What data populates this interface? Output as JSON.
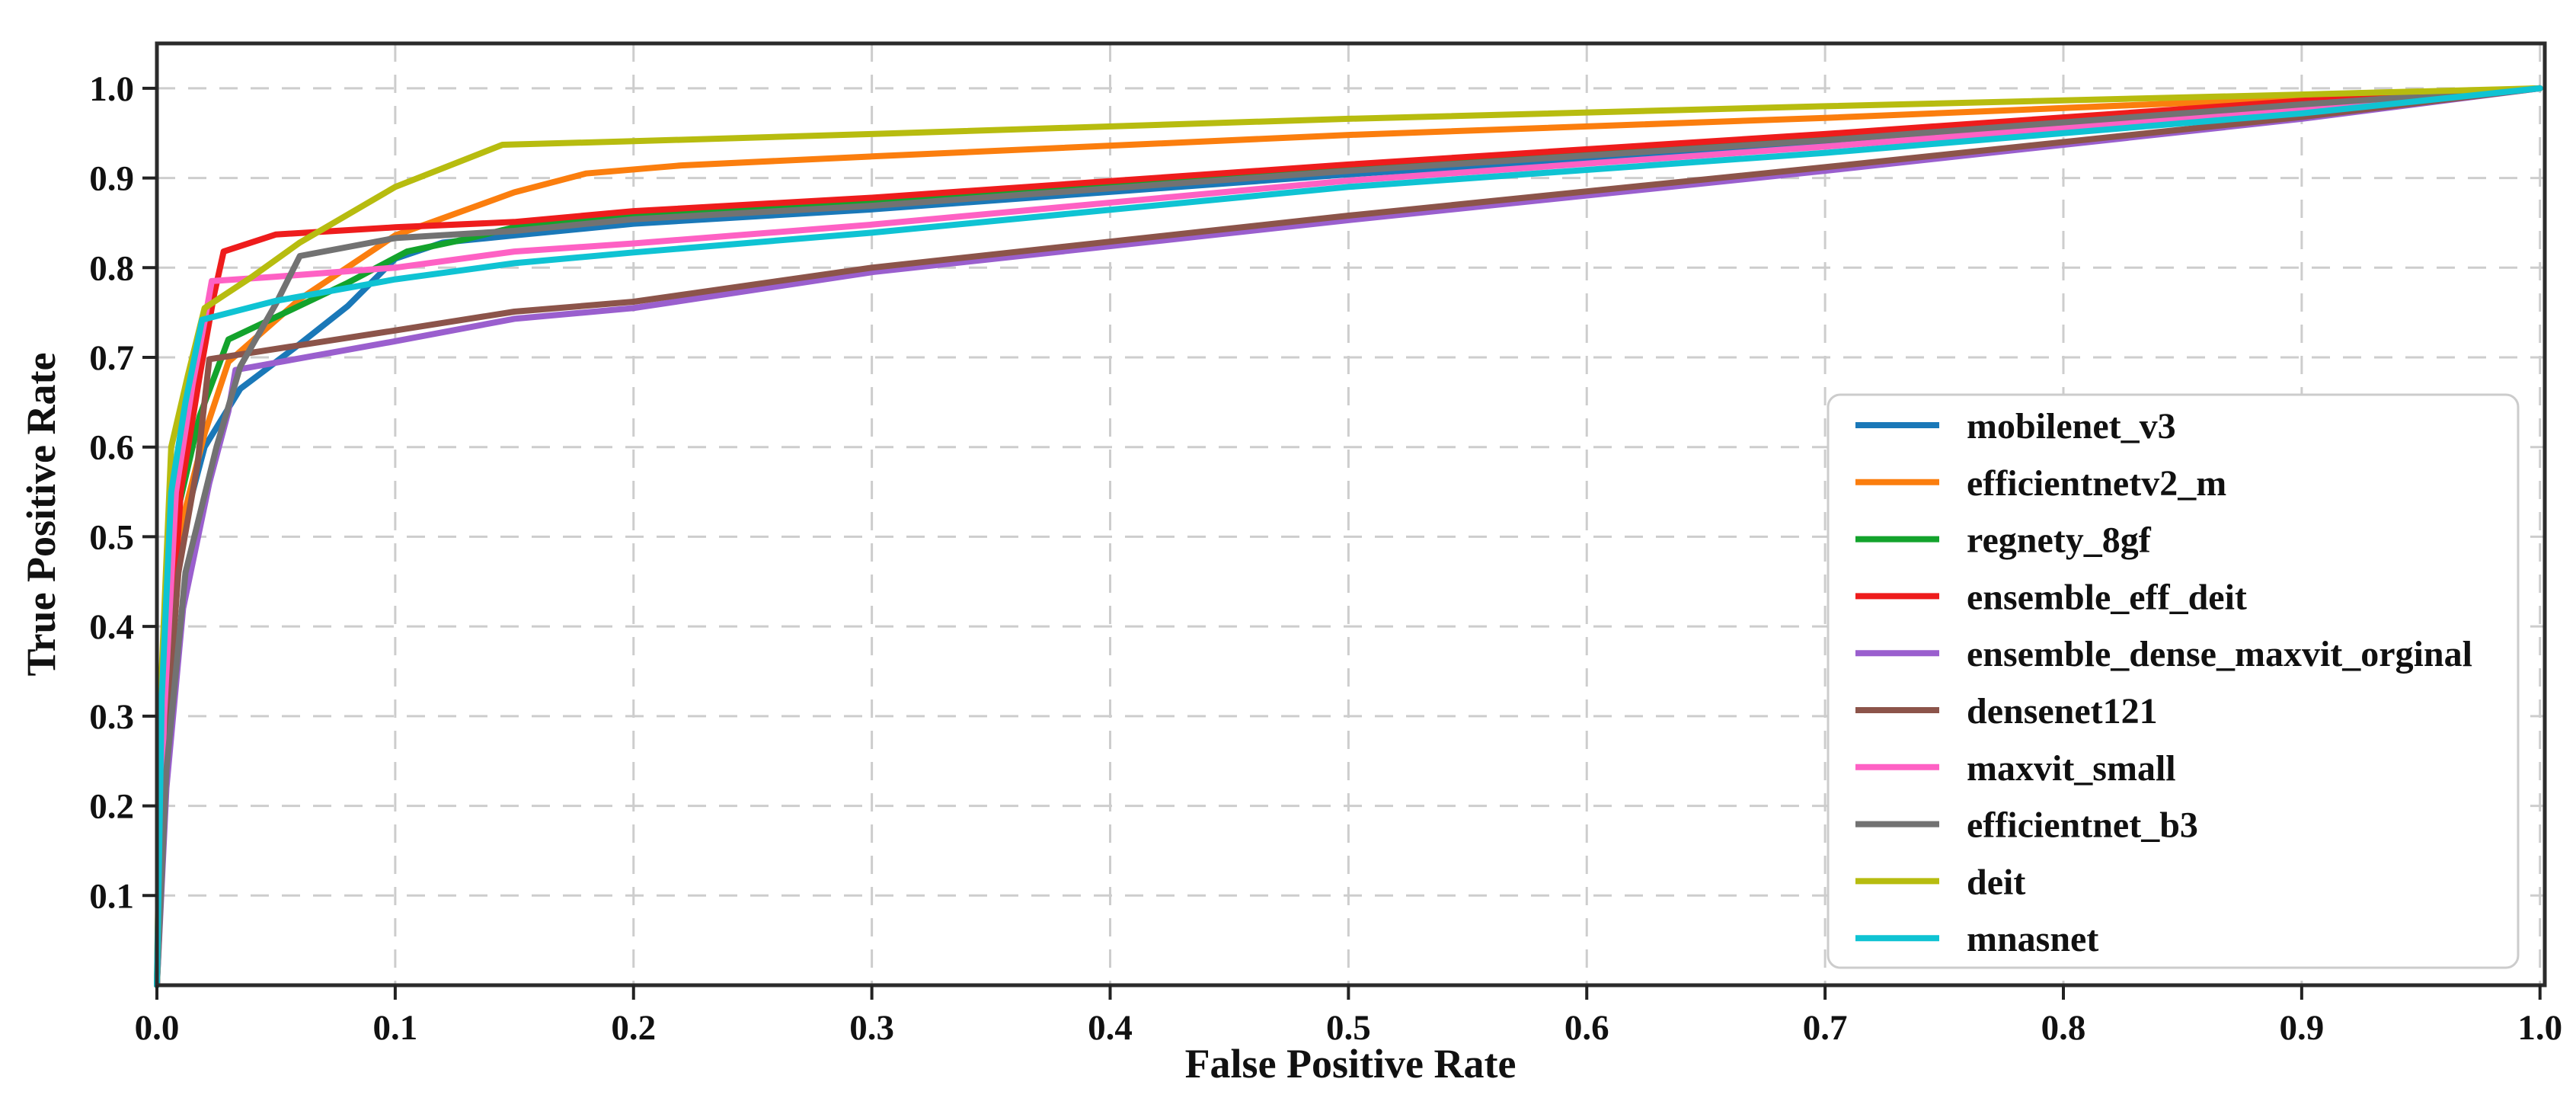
{
  "figure": {
    "xlabel": "False Positive Rate",
    "ylabel": "True Positive Rate"
  },
  "chart_data": {
    "type": "line",
    "title": "",
    "xlabel": "False Positive Rate",
    "ylabel": "True Positive Rate",
    "xlim": [
      0,
      1.0
    ],
    "ylim": [
      0,
      1.05
    ],
    "grid": true,
    "grid_style": "dashed",
    "legend_position": "lower right",
    "x_ticks": [
      "0.0",
      "0.1",
      "0.2",
      "0.3",
      "0.4",
      "0.5",
      "0.6",
      "0.7",
      "0.8",
      "0.9",
      "1.0"
    ],
    "y_ticks": [
      "0.1",
      "0.2",
      "0.3",
      "0.4",
      "0.5",
      "0.6",
      "0.7",
      "0.8",
      "0.9",
      "1.0"
    ],
    "series": [
      {
        "name": "mobilenet_v3",
        "color": "#1a78b8",
        "points": [
          [
            0,
            0
          ],
          [
            0.004,
            0.28
          ],
          [
            0.01,
            0.5
          ],
          [
            0.02,
            0.6
          ],
          [
            0.035,
            0.665
          ],
          [
            0.06,
            0.715
          ],
          [
            0.08,
            0.757
          ],
          [
            0.1,
            0.81
          ],
          [
            0.12,
            0.828
          ],
          [
            0.15,
            0.836
          ],
          [
            0.2,
            0.849
          ],
          [
            0.3,
            0.865
          ],
          [
            0.5,
            0.904
          ],
          [
            0.7,
            0.939
          ],
          [
            0.9,
            0.98
          ],
          [
            1,
            1
          ]
        ]
      },
      {
        "name": "efficientnetv2_m",
        "color": "#fb7e0e",
        "points": [
          [
            0,
            0
          ],
          [
            0.003,
            0.28
          ],
          [
            0.009,
            0.5
          ],
          [
            0.02,
            0.615
          ],
          [
            0.03,
            0.695
          ],
          [
            0.06,
            0.765
          ],
          [
            0.1,
            0.836
          ],
          [
            0.15,
            0.884
          ],
          [
            0.18,
            0.905
          ],
          [
            0.22,
            0.914
          ],
          [
            0.3,
            0.924
          ],
          [
            0.5,
            0.948
          ],
          [
            0.7,
            0.967
          ],
          [
            0.9,
            0.989
          ],
          [
            1,
            1
          ]
        ]
      },
      {
        "name": "regnety_8gf",
        "color": "#13a32c",
        "points": [
          [
            0,
            0
          ],
          [
            0.003,
            0.3
          ],
          [
            0.008,
            0.52
          ],
          [
            0.018,
            0.635
          ],
          [
            0.03,
            0.72
          ],
          [
            0.05,
            0.745
          ],
          [
            0.08,
            0.783
          ],
          [
            0.105,
            0.818
          ],
          [
            0.13,
            0.832
          ],
          [
            0.15,
            0.845
          ],
          [
            0.2,
            0.859
          ],
          [
            0.3,
            0.873
          ],
          [
            0.5,
            0.909
          ],
          [
            0.7,
            0.943
          ],
          [
            0.9,
            0.982
          ],
          [
            1,
            1
          ]
        ]
      },
      {
        "name": "ensemble_eff_deit",
        "color": "#ee1c1c",
        "points": [
          [
            0,
            0
          ],
          [
            0.004,
            0.3
          ],
          [
            0.01,
            0.55
          ],
          [
            0.018,
            0.68
          ],
          [
            0.024,
            0.77
          ],
          [
            0.028,
            0.818
          ],
          [
            0.05,
            0.837
          ],
          [
            0.1,
            0.845
          ],
          [
            0.15,
            0.851
          ],
          [
            0.2,
            0.863
          ],
          [
            0.3,
            0.878
          ],
          [
            0.5,
            0.915
          ],
          [
            0.7,
            0.949
          ],
          [
            0.9,
            0.986
          ],
          [
            1,
            1
          ]
        ]
      },
      {
        "name": "ensemble_dense_maxvit_orginal",
        "color": "#9a5fce",
        "points": [
          [
            0,
            0
          ],
          [
            0.004,
            0.22
          ],
          [
            0.011,
            0.42
          ],
          [
            0.022,
            0.56
          ],
          [
            0.03,
            0.64
          ],
          [
            0.033,
            0.686
          ],
          [
            0.1,
            0.718
          ],
          [
            0.15,
            0.743
          ],
          [
            0.2,
            0.755
          ],
          [
            0.3,
            0.795
          ],
          [
            0.5,
            0.853
          ],
          [
            0.7,
            0.908
          ],
          [
            0.9,
            0.966
          ],
          [
            1,
            1
          ]
        ]
      },
      {
        "name": "densenet121",
        "color": "#8c544a",
        "points": [
          [
            0,
            0
          ],
          [
            0.003,
            0.25
          ],
          [
            0.009,
            0.46
          ],
          [
            0.017,
            0.58
          ],
          [
            0.022,
            0.698
          ],
          [
            0.1,
            0.73
          ],
          [
            0.15,
            0.751
          ],
          [
            0.2,
            0.762
          ],
          [
            0.3,
            0.8
          ],
          [
            0.5,
            0.858
          ],
          [
            0.7,
            0.912
          ],
          [
            0.9,
            0.968
          ],
          [
            1,
            1
          ]
        ]
      },
      {
        "name": "maxvit_small",
        "color": "#fe61c4",
        "points": [
          [
            0,
            0
          ],
          [
            0.003,
            0.3
          ],
          [
            0.008,
            0.55
          ],
          [
            0.015,
            0.67
          ],
          [
            0.02,
            0.74
          ],
          [
            0.023,
            0.785
          ],
          [
            0.05,
            0.79
          ],
          [
            0.1,
            0.8
          ],
          [
            0.15,
            0.818
          ],
          [
            0.2,
            0.827
          ],
          [
            0.3,
            0.848
          ],
          [
            0.5,
            0.897
          ],
          [
            0.7,
            0.935
          ],
          [
            0.9,
            0.977
          ],
          [
            1,
            1
          ]
        ]
      },
      {
        "name": "efficientnet_b3",
        "color": "#727272",
        "points": [
          [
            0,
            0
          ],
          [
            0.004,
            0.24
          ],
          [
            0.012,
            0.46
          ],
          [
            0.025,
            0.6
          ],
          [
            0.035,
            0.69
          ],
          [
            0.05,
            0.76
          ],
          [
            0.06,
            0.813
          ],
          [
            0.1,
            0.833
          ],
          [
            0.15,
            0.841
          ],
          [
            0.2,
            0.854
          ],
          [
            0.3,
            0.869
          ],
          [
            0.5,
            0.908
          ],
          [
            0.7,
            0.942
          ],
          [
            0.9,
            0.982
          ],
          [
            1,
            1
          ]
        ]
      },
      {
        "name": "deit",
        "color": "#b7bc0f",
        "points": [
          [
            0,
            0
          ],
          [
            0.002,
            0.35
          ],
          [
            0.006,
            0.6
          ],
          [
            0.013,
            0.68
          ],
          [
            0.02,
            0.755
          ],
          [
            0.04,
            0.79
          ],
          [
            0.06,
            0.828
          ],
          [
            0.1,
            0.89
          ],
          [
            0.145,
            0.937
          ],
          [
            0.2,
            0.941
          ],
          [
            0.3,
            0.949
          ],
          [
            0.5,
            0.966
          ],
          [
            0.7,
            0.98
          ],
          [
            0.9,
            0.993
          ],
          [
            1,
            1
          ]
        ]
      },
      {
        "name": "mnasnet",
        "color": "#0fc3d3",
        "points": [
          [
            0,
            0
          ],
          [
            0.002,
            0.32
          ],
          [
            0.006,
            0.55
          ],
          [
            0.012,
            0.65
          ],
          [
            0.019,
            0.742
          ],
          [
            0.05,
            0.763
          ],
          [
            0.1,
            0.787
          ],
          [
            0.15,
            0.805
          ],
          [
            0.2,
            0.817
          ],
          [
            0.3,
            0.839
          ],
          [
            0.5,
            0.89
          ],
          [
            0.7,
            0.928
          ],
          [
            0.9,
            0.972
          ],
          [
            1,
            1
          ]
        ]
      }
    ]
  }
}
